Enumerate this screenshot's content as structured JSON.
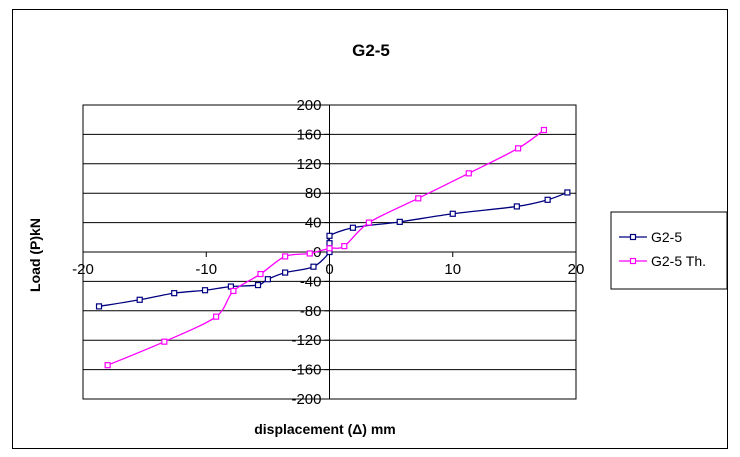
{
  "chart_data": {
    "type": "line",
    "title": "G2-5",
    "xlabel": "displacement (Δ) mm",
    "ylabel": "Load (P)kN",
    "xlim": [
      -20,
      20
    ],
    "ylim": [
      -200,
      200
    ],
    "x_ticks": [
      -20,
      -10,
      0,
      10,
      20
    ],
    "y_ticks": [
      200,
      160,
      120,
      80,
      40,
      0,
      -40,
      -80,
      -120,
      -160,
      -200
    ],
    "grid": "horizontal",
    "legend_position": "right",
    "series": [
      {
        "name": "G2-5",
        "color": "#000080",
        "marker": "square",
        "points": [
          [
            -18.7,
            -74
          ],
          [
            -15.4,
            -65
          ],
          [
            -12.6,
            -56
          ],
          [
            -10.1,
            -52
          ],
          [
            -8.0,
            -47
          ],
          [
            -5.8,
            -45
          ],
          [
            -5.0,
            -37
          ],
          [
            -3.6,
            -28
          ],
          [
            -1.3,
            -20
          ],
          [
            0.0,
            0
          ],
          [
            0.0,
            12
          ],
          [
            0.0,
            22
          ],
          [
            1.9,
            33
          ],
          [
            5.7,
            41
          ],
          [
            10.0,
            52
          ],
          [
            15.2,
            62
          ],
          [
            17.7,
            71
          ],
          [
            19.3,
            81
          ]
        ]
      },
      {
        "name": "G2-5 Th.",
        "color": "#FF00FF",
        "marker": "square",
        "points": [
          [
            -18.0,
            -154
          ],
          [
            -13.4,
            -122
          ],
          [
            -9.2,
            -88
          ],
          [
            -7.8,
            -53
          ],
          [
            -5.6,
            -30
          ],
          [
            -3.6,
            -6
          ],
          [
            -1.6,
            -2
          ],
          [
            0.0,
            5
          ],
          [
            1.2,
            8
          ],
          [
            3.2,
            40
          ],
          [
            7.2,
            73
          ],
          [
            11.3,
            107
          ],
          [
            15.3,
            141
          ],
          [
            17.4,
            166
          ]
        ]
      }
    ]
  }
}
